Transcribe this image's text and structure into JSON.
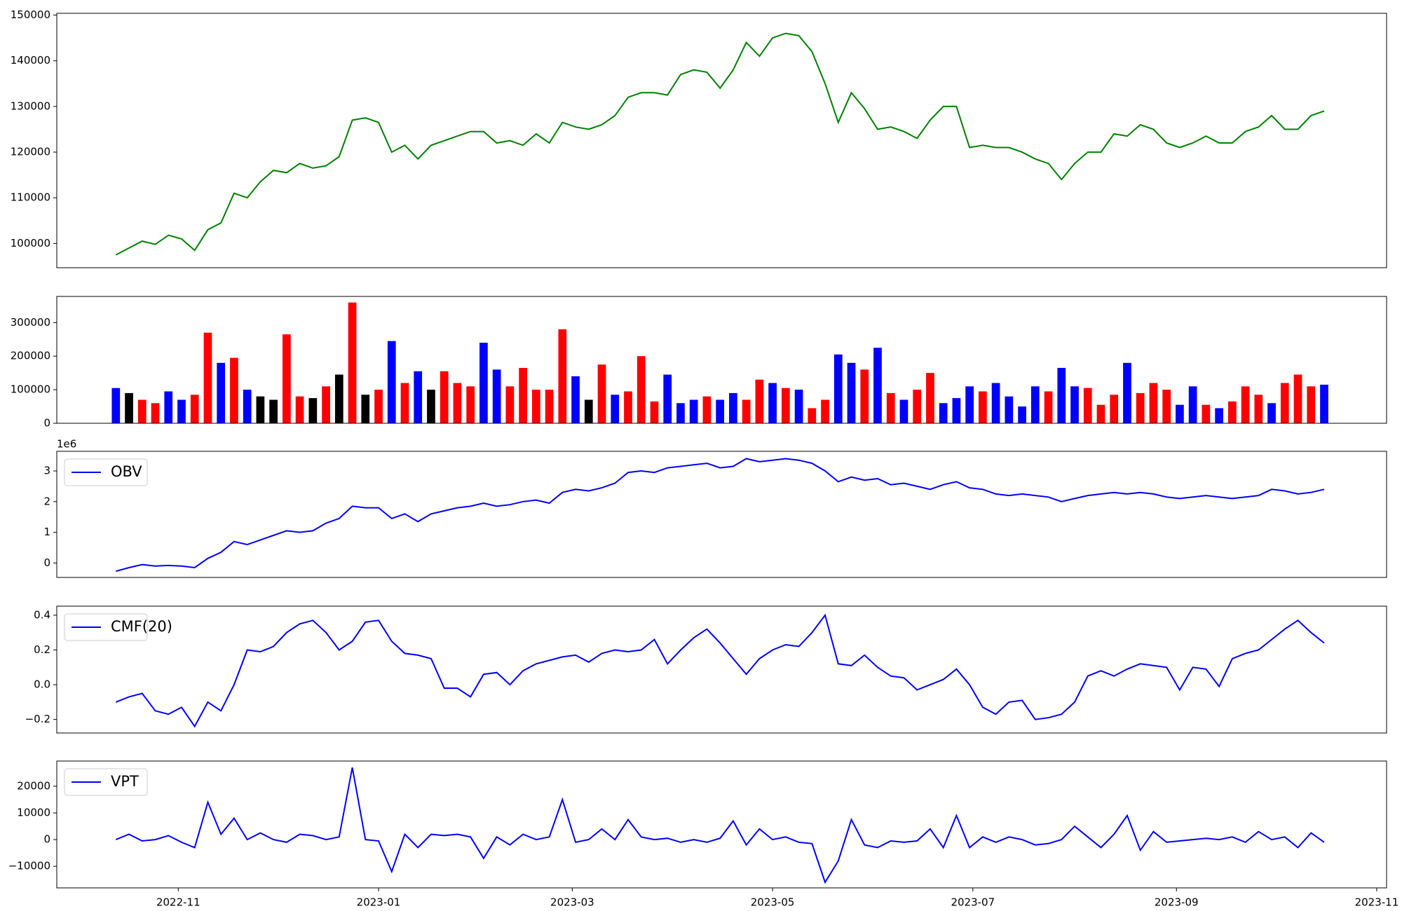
{
  "chart_data": {
    "type": "panels",
    "x": [
      "2022-10-13",
      "2022-10-17",
      "2022-10-21",
      "2022-10-25",
      "2022-10-29",
      "2022-11-02",
      "2022-11-06",
      "2022-11-10",
      "2022-11-14",
      "2022-11-18",
      "2022-11-22",
      "2022-11-26",
      "2022-11-30",
      "2022-12-04",
      "2022-12-08",
      "2022-12-12",
      "2022-12-16",
      "2022-12-20",
      "2022-12-24",
      "2022-12-28",
      "2023-01-01",
      "2023-01-05",
      "2023-01-09",
      "2023-01-13",
      "2023-01-17",
      "2023-01-21",
      "2023-01-25",
      "2023-01-29",
      "2023-02-02",
      "2023-02-06",
      "2023-02-10",
      "2023-02-14",
      "2023-02-18",
      "2023-02-22",
      "2023-02-26",
      "2023-03-02",
      "2023-03-06",
      "2023-03-10",
      "2023-03-14",
      "2023-03-18",
      "2023-03-22",
      "2023-03-26",
      "2023-03-30",
      "2023-04-03",
      "2023-04-07",
      "2023-04-11",
      "2023-04-15",
      "2023-04-19",
      "2023-04-23",
      "2023-04-27",
      "2023-05-01",
      "2023-05-05",
      "2023-05-09",
      "2023-05-13",
      "2023-05-17",
      "2023-05-21",
      "2023-05-25",
      "2023-05-29",
      "2023-06-02",
      "2023-06-06",
      "2023-06-10",
      "2023-06-14",
      "2023-06-18",
      "2023-06-22",
      "2023-06-26",
      "2023-06-30",
      "2023-07-04",
      "2023-07-08",
      "2023-07-12",
      "2023-07-16",
      "2023-07-20",
      "2023-07-24",
      "2023-07-28",
      "2023-08-01",
      "2023-08-05",
      "2023-08-09",
      "2023-08-13",
      "2023-08-17",
      "2023-08-21",
      "2023-08-25",
      "2023-08-29",
      "2023-09-02",
      "2023-09-06",
      "2023-09-10",
      "2023-09-14",
      "2023-09-18",
      "2023-09-22",
      "2023-09-26",
      "2023-09-30",
      "2023-10-04",
      "2023-10-08",
      "2023-10-12",
      "2023-10-16"
    ],
    "xlim": [
      "2022-09-25",
      "2023-11-04"
    ],
    "xticks": [
      {
        "value": "2022-11-01",
        "label": "2022-11"
      },
      {
        "value": "2023-01-01",
        "label": "2023-01"
      },
      {
        "value": "2023-03-01",
        "label": "2023-03"
      },
      {
        "value": "2023-05-01",
        "label": "2023-05"
      },
      {
        "value": "2023-07-01",
        "label": "2023-07"
      },
      {
        "value": "2023-09-01",
        "label": "2023-09"
      },
      {
        "value": "2023-11-01",
        "label": "2023-11"
      }
    ],
    "panels": [
      {
        "type": "line",
        "ylim": [
          94690,
          150390
        ],
        "yticks": [
          100000,
          110000,
          120000,
          130000,
          140000,
          150000
        ],
        "series": [
          {
            "color": "green",
            "values": [
              97500,
              99000,
              100500,
              99800,
              101800,
              101000,
              98500,
              103000,
              104500,
              111000,
              110000,
              113500,
              116000,
              115500,
              117500,
              116500,
              117000,
              119000,
              127000,
              127500,
              126500,
              120000,
              121500,
              118500,
              121500,
              122500,
              123500,
              124500,
              124500,
              122000,
              122500,
              121500,
              124000,
              122000,
              126500,
              125500,
              125000,
              126000,
              128000,
              132000,
              133000,
              133000,
              132500,
              137000,
              138000,
              137500,
              134000,
              138000,
              144000,
              141000,
              145000,
              146000,
              145500,
              142000,
              135000,
              126500,
              133000,
              129500,
              125000,
              125500,
              124500,
              123000,
              127000,
              130000,
              130000,
              121000,
              121500,
              121000,
              121000,
              120000,
              118500,
              117500,
              114000,
              117500,
              120000,
              120000,
              124000,
              123500,
              126000,
              125000,
              122000,
              121000,
              122000,
              123500,
              122000,
              122000,
              124500,
              125500,
              128000,
              125000,
              125000,
              128000,
              129000
            ]
          }
        ]
      },
      {
        "type": "bar",
        "ylim": [
          0,
          378000
        ],
        "yticks": [
          0,
          100000,
          200000,
          300000
        ],
        "values": [
          105000,
          90000,
          70000,
          60000,
          95000,
          70000,
          85000,
          270000,
          180000,
          195000,
          100000,
          80000,
          70000,
          265000,
          80000,
          75000,
          110000,
          145000,
          360000,
          85000,
          100000,
          245000,
          120000,
          155000,
          100000,
          155000,
          120000,
          110000,
          240000,
          160000,
          110000,
          165000,
          100000,
          100000,
          280000,
          140000,
          70000,
          175000,
          85000,
          95000,
          200000,
          65000,
          145000,
          60000,
          70000,
          80000,
          70000,
          90000,
          70000,
          130000,
          120000,
          105000,
          100000,
          45000,
          70000,
          205000,
          180000,
          160000,
          225000,
          90000,
          70000,
          100000,
          150000,
          60000,
          75000,
          110000,
          95000,
          120000,
          80000,
          50000,
          110000,
          95000,
          165000,
          110000,
          105000,
          55000,
          85000,
          180000,
          90000,
          120000,
          100000,
          55000,
          110000,
          55000,
          45000,
          65000,
          110000,
          85000,
          60000,
          120000,
          145000,
          110000,
          115000
        ],
        "colors": [
          "blue",
          "black",
          "red",
          "red",
          "blue",
          "blue",
          "red",
          "red",
          "blue",
          "red",
          "blue",
          "black",
          "black",
          "red",
          "red",
          "black",
          "red",
          "black",
          "red",
          "black",
          "red",
          "blue",
          "red",
          "blue",
          "black",
          "red",
          "red",
          "red",
          "blue",
          "blue",
          "red",
          "red",
          "red",
          "red",
          "red",
          "blue",
          "black",
          "red",
          "blue",
          "red",
          "red",
          "red",
          "blue",
          "blue",
          "blue",
          "red",
          "blue",
          "blue",
          "red",
          "red",
          "blue",
          "red",
          "blue",
          "red",
          "red",
          "blue",
          "blue",
          "red",
          "blue",
          "red",
          "blue",
          "red",
          "red",
          "blue",
          "blue",
          "blue",
          "red",
          "blue",
          "blue",
          "blue",
          "blue",
          "red",
          "blue",
          "blue",
          "red",
          "red",
          "red",
          "blue",
          "red",
          "red",
          "red",
          "blue",
          "blue",
          "red",
          "blue",
          "red",
          "red",
          "red",
          "blue",
          "red",
          "red",
          "red",
          "blue"
        ]
      },
      {
        "type": "line",
        "ylim": [
          -0.47,
          3.64
        ],
        "yticks": [
          0,
          1,
          2,
          3
        ],
        "offset_label": "1e6",
        "legend": "upper left",
        "series": [
          {
            "name": "OBV",
            "color": "blue",
            "values": [
              -0.27,
              -0.15,
              -0.05,
              -0.1,
              -0.08,
              -0.1,
              -0.15,
              0.15,
              0.35,
              0.7,
              0.6,
              0.75,
              0.9,
              1.05,
              1.0,
              1.05,
              1.3,
              1.45,
              1.85,
              1.8,
              1.8,
              1.45,
              1.6,
              1.35,
              1.6,
              1.7,
              1.8,
              1.85,
              1.95,
              1.85,
              1.9,
              2.0,
              2.05,
              1.95,
              2.3,
              2.4,
              2.35,
              2.45,
              2.6,
              2.95,
              3.0,
              2.95,
              3.1,
              3.15,
              3.2,
              3.25,
              3.1,
              3.15,
              3.4,
              3.3,
              3.35,
              3.4,
              3.35,
              3.25,
              3.0,
              2.65,
              2.8,
              2.7,
              2.75,
              2.55,
              2.6,
              2.5,
              2.4,
              2.55,
              2.65,
              2.45,
              2.4,
              2.25,
              2.2,
              2.25,
              2.2,
              2.15,
              2.0,
              2.1,
              2.2,
              2.25,
              2.3,
              2.25,
              2.3,
              2.25,
              2.15,
              2.1,
              2.15,
              2.2,
              2.15,
              2.1,
              2.15,
              2.2,
              2.4,
              2.35,
              2.25,
              2.3,
              2.4
            ]
          }
        ]
      },
      {
        "type": "line",
        "ylim": [
          -0.278,
          0.452
        ],
        "yticks": [
          {
            "value": -0.2,
            "label": "−0.2"
          },
          {
            "value": 0,
            "label": "0.0"
          },
          0.2,
          0.4
        ],
        "legend": "upper left",
        "series": [
          {
            "name": "CMF(20)",
            "color": "blue",
            "values": [
              -0.1,
              -0.07,
              -0.05,
              -0.15,
              -0.17,
              -0.13,
              -0.24,
              -0.1,
              -0.15,
              0.0,
              0.2,
              0.19,
              0.22,
              0.3,
              0.35,
              0.37,
              0.3,
              0.2,
              0.25,
              0.36,
              0.37,
              0.25,
              0.18,
              0.17,
              0.15,
              -0.02,
              -0.02,
              -0.07,
              0.06,
              0.07,
              0.0,
              0.08,
              0.12,
              0.14,
              0.16,
              0.17,
              0.13,
              0.18,
              0.2,
              0.19,
              0.2,
              0.26,
              0.12,
              0.2,
              0.27,
              0.32,
              0.24,
              0.15,
              0.06,
              0.15,
              0.2,
              0.23,
              0.22,
              0.3,
              0.4,
              0.12,
              0.11,
              0.17,
              0.1,
              0.05,
              0.04,
              -0.03,
              0.0,
              0.03,
              0.09,
              0.0,
              -0.13,
              -0.17,
              -0.1,
              -0.09,
              -0.2,
              -0.19,
              -0.17,
              -0.1,
              0.05,
              0.08,
              0.05,
              0.09,
              0.12,
              0.11,
              0.1,
              -0.03,
              0.1,
              0.09,
              -0.01,
              0.15,
              0.18,
              0.2,
              0.26,
              0.32,
              0.37,
              0.3,
              0.24
            ]
          }
        ]
      },
      {
        "type": "line",
        "ylim": [
          -18090,
          29440
        ],
        "yticks": [
          {
            "value": -10000,
            "label": "−10000"
          },
          0,
          10000,
          20000
        ],
        "legend": "upper left",
        "show_xticks": true,
        "series": [
          {
            "name": "VPT",
            "color": "blue",
            "values": [
              0,
              2000,
              -500,
              0,
              1500,
              -1000,
              -3000,
              14000,
              2000,
              8000,
              0,
              2500,
              0,
              -1000,
              2000,
              1500,
              0,
              1000,
              27000,
              0,
              -500,
              -12000,
              2000,
              -3000,
              2000,
              1500,
              2000,
              1000,
              -7000,
              1000,
              -2000,
              2000,
              0,
              1000,
              15000,
              -1000,
              0,
              4000,
              0,
              7500,
              1000,
              0,
              500,
              -1000,
              0,
              -1000,
              500,
              7000,
              -2000,
              4000,
              0,
              1000,
              -1000,
              -1500,
              -16000,
              -8000,
              7500,
              -2000,
              -3000,
              -500,
              -1000,
              -500,
              4000,
              -3000,
              9000,
              -3000,
              1000,
              -1000,
              1000,
              0,
              -2000,
              -1500,
              0,
              5000,
              1000,
              -3000,
              2000,
              9000,
              -4000,
              3000,
              -1000,
              -500,
              0,
              500,
              0,
              1000,
              -1000,
              3000,
              0,
              1000,
              -3000,
              2500,
              -1000
            ]
          }
        ]
      }
    ]
  }
}
